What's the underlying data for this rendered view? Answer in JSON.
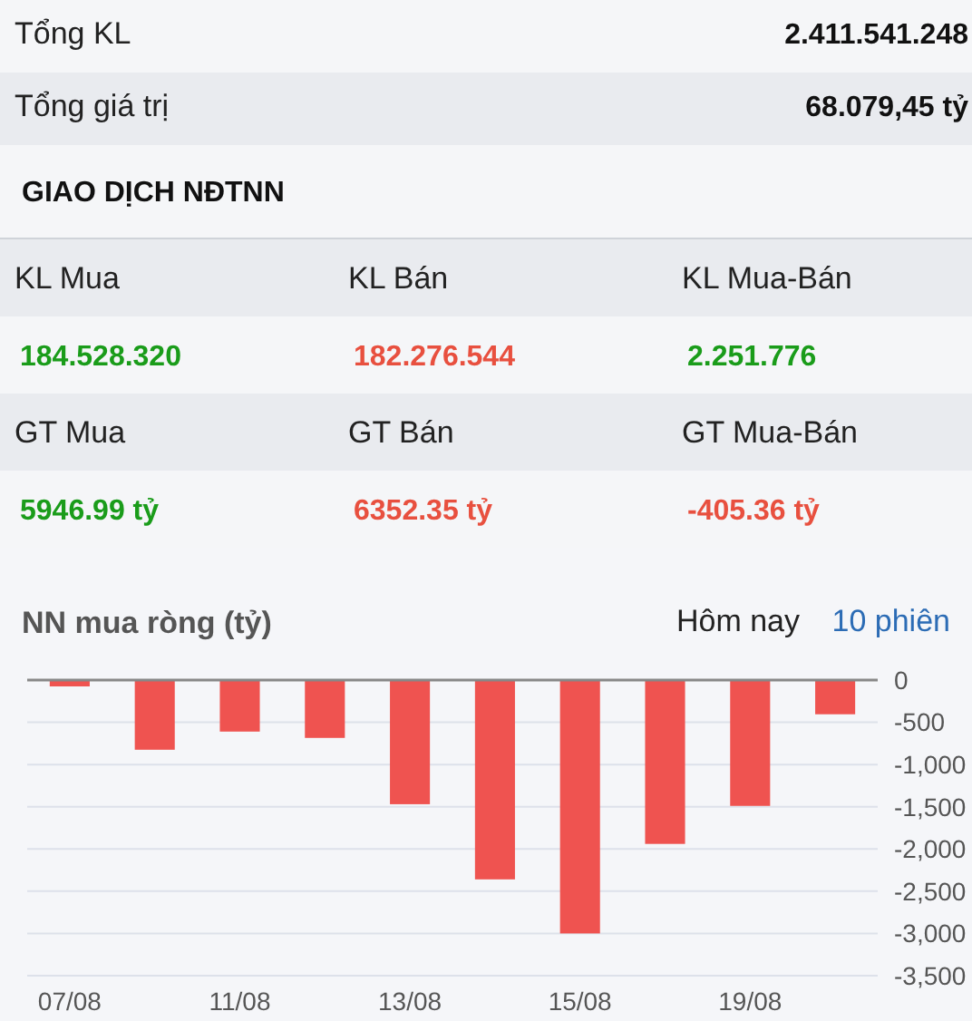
{
  "chart_data": [
    {
      "type": "other",
      "annotations": [
        "Tổng KL",
        "2.411.541.248",
        "Tổng giá trị",
        "68.079,45 tỷ"
      ]
    },
    {
      "type": "other",
      "title": "GIAO DỊCH NĐTNN",
      "annotations": [
        "KL Mua",
        "KL Bán",
        "KL Mua-Bán",
        "184.528.320",
        "182.276.544",
        "2.251.776",
        "GT Mua",
        "GT Bán",
        "GT Mua-Bán",
        "5946.99 tỷ",
        "6352.35 tỷ",
        "-405.36 tỷ"
      ],
      "colors": [
        "#1a9c1a",
        "#e8503f",
        "#1a9c1a",
        "#1a9c1a",
        "#e8503f",
        "#e8503f"
      ]
    },
    {
      "type": "bar",
      "title": "NN mua ròng (tỷ)",
      "annotations": [
        "Hôm nay",
        "10 phiên"
      ],
      "categories": [
        "07/08",
        null,
        "11/08",
        null,
        "13/08",
        null,
        "15/08",
        null,
        "19/08",
        null
      ],
      "values": [
        -75,
        -825,
        -610,
        -685,
        -1470,
        -2360,
        -3000,
        -1940,
        -1490,
        -405
      ],
      "color": "#ef5350",
      "ylim": [
        -3500,
        0
      ],
      "yticks": [
        0,
        -500,
        {
          "value": -1000,
          "label": "-1,000"
        },
        {
          "value": -1500,
          "label": "-1,500"
        },
        {
          "value": -2000,
          "label": "-2,000"
        },
        {
          "value": -2500,
          "label": "-2,500"
        },
        {
          "value": -3000,
          "label": "-3,000"
        },
        {
          "value": -3500,
          "label": "-3,500"
        }
      ],
      "grid": "y"
    }
  ]
}
